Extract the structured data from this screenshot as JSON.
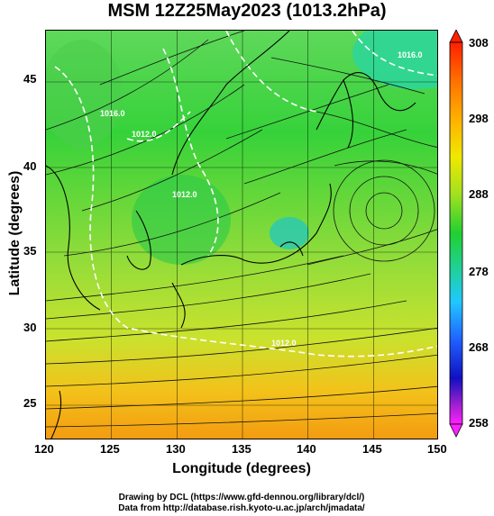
{
  "title": "MSM 12Z25May2023 (1013.2hPa)",
  "axes": {
    "xlabel": "Longitude (degrees)",
    "ylabel": "Latitude  (degrees)",
    "xticks": [
      "120",
      "125",
      "130",
      "135",
      "140",
      "145",
      "150"
    ],
    "yticks": [
      "45",
      "40",
      "35",
      "30",
      "25"
    ]
  },
  "colorbar": {
    "labels": [
      "308",
      "298",
      "288",
      "278",
      "268",
      "258"
    ]
  },
  "contour_labels": [
    "1016.0",
    "1012.0",
    "1012.0",
    "1016.0",
    "1012.0"
  ],
  "credits": {
    "line1": "Drawing by DCL (https://www.gfd-dennou.org/library/dcl/)",
    "line2": "Data from http://database.rish.kyoto-u.ac.jp/arch/jmadata/"
  }
}
